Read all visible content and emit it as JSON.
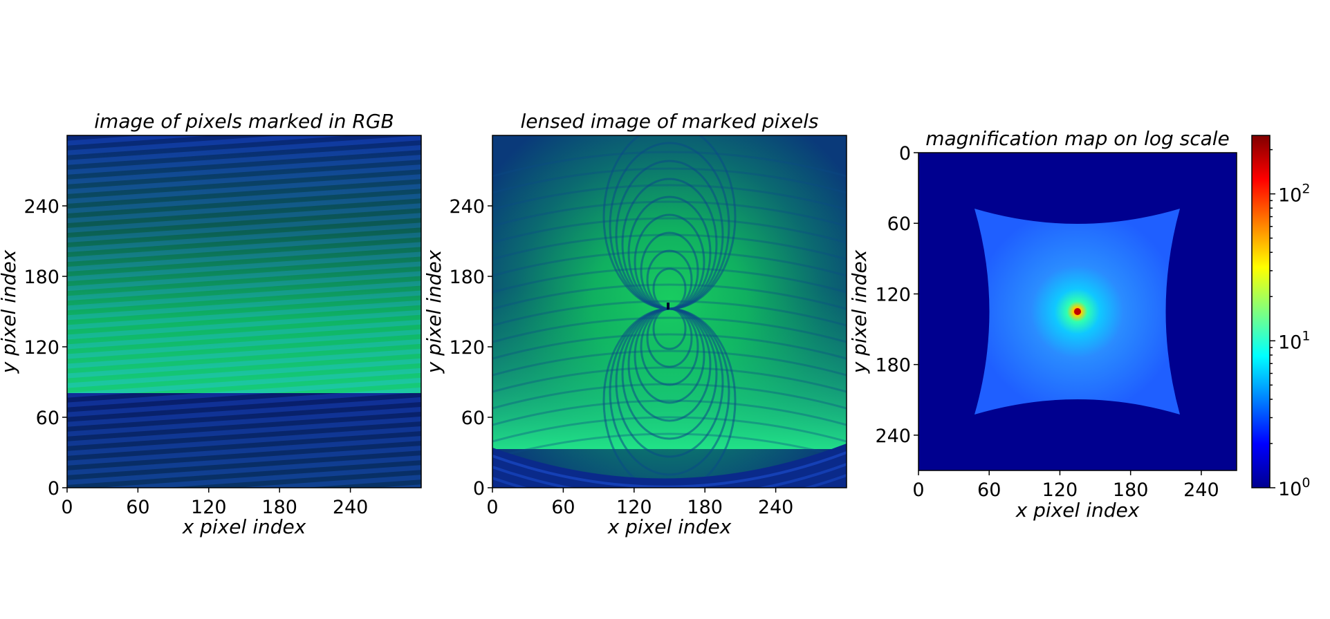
{
  "chart_data": [
    {
      "type": "heatmap",
      "title": "image of pixels marked in RGB",
      "xlabel": "x pixel index",
      "ylabel": "y pixel index",
      "xlim": [
        0,
        300
      ],
      "ylim": [
        300,
        0
      ],
      "xticks": [
        0,
        60,
        120,
        180,
        240
      ],
      "yticks": [
        0,
        60,
        120,
        180,
        240
      ],
      "colors": {
        "dark": "#0a1f6e",
        "mid": "#0a7a55",
        "bright": "#18f07a",
        "blue": "#1f3fe0"
      }
    },
    {
      "type": "heatmap",
      "title": "lensed image of marked pixels",
      "xlabel": "x pixel index",
      "ylabel": "y pixel index",
      "xlim": [
        0,
        300
      ],
      "ylim": [
        300,
        0
      ],
      "xticks": [
        0,
        60,
        120,
        180,
        240
      ],
      "yticks": [
        0,
        60,
        120,
        180,
        240
      ],
      "colors": {
        "dark": "#0a1f6e",
        "mid": "#0a9a50",
        "bright": "#20f080",
        "blue": "#1f7fe0"
      }
    },
    {
      "type": "heatmap",
      "title": "magnification map on log scale",
      "xlabel": "x pixel index",
      "ylabel": "",
      "xlim": [
        0,
        270
      ],
      "ylim": [
        0,
        270
      ],
      "xticks": [
        0,
        60,
        120,
        180,
        240
      ],
      "yticks": [
        0,
        60,
        120,
        180,
        240
      ],
      "colorscale": "log",
      "colorbar": {
        "min": 1,
        "max": 250,
        "ticks": [
          "10",
          "10",
          "10"
        ],
        "exponents": [
          "0",
          "1",
          "2"
        ]
      },
      "colors": {
        "background": "#00008f",
        "shape": "#1f5fff",
        "peak": "#ff2000"
      }
    }
  ]
}
